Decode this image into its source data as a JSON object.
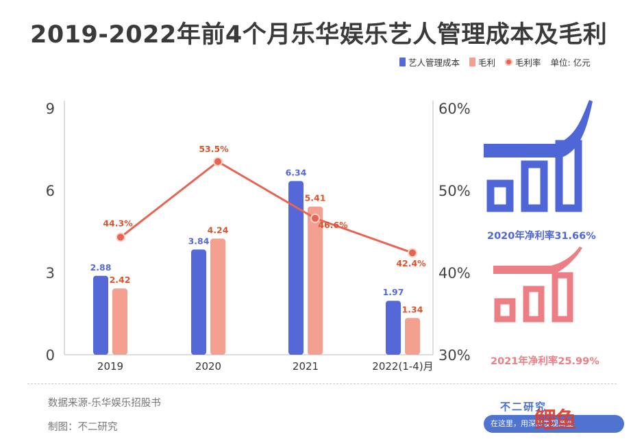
{
  "title": "2019-2022年前4个月乐华娱乐艺人管理成本及毛利",
  "legend": {
    "cost": "艺人管理成本",
    "profit": "毛利",
    "margin": "毛利率",
    "unit": "单位: 亿元"
  },
  "colors": {
    "cost": "#5468d8",
    "profit": "#f4a090",
    "margin": "#e86452",
    "deco_blue": "#4f67d6",
    "deco_pink": "#ec7f86",
    "title": "#3a3a3a"
  },
  "chart_data": {
    "type": "bar",
    "categories": [
      "2019",
      "2020",
      "2021",
      "2022(1-4)月"
    ],
    "series": [
      {
        "name": "艺人管理成本",
        "type": "bar",
        "axis": "left",
        "values": [
          2.88,
          3.84,
          6.34,
          1.97
        ],
        "labels": [
          "2.88",
          "3.84",
          "6.34",
          "1.97"
        ]
      },
      {
        "name": "毛利",
        "type": "bar",
        "axis": "left",
        "values": [
          2.42,
          4.24,
          5.41,
          1.34
        ],
        "labels": [
          "2.42",
          "4.24",
          "5.41",
          "1.34"
        ]
      },
      {
        "name": "毛利率",
        "type": "line",
        "axis": "right",
        "values": [
          44.3,
          53.5,
          46.6,
          42.4
        ],
        "labels": [
          "44.3%",
          "53.5%",
          "46.6%",
          "42.4%"
        ]
      }
    ],
    "y_left": {
      "ticks": [
        "0",
        "3",
        "6",
        "9"
      ],
      "range": [
        0,
        9
      ]
    },
    "y_right": {
      "ticks": [
        "30%",
        "40%",
        "50%",
        "60%"
      ],
      "range": [
        30,
        60
      ]
    },
    "grid": false,
    "legend_position": "top-right"
  },
  "deco": {
    "net_margin_2020": "2020年净利率31.66%",
    "net_margin_2021": "2021年净利率25.99%"
  },
  "footer": {
    "source": "数据来源-乐华娱乐招股书",
    "made_by": "制图：不二研究",
    "brand": "不二研究",
    "slogan": "在这里，用深度发现商业",
    "logo": "鲤鱼"
  }
}
